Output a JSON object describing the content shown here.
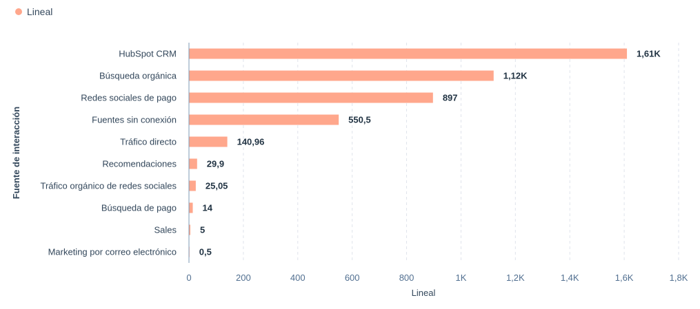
{
  "legend": {
    "label": "Lineal",
    "color": "#ffa78c"
  },
  "chart_data": {
    "type": "bar",
    "orientation": "horizontal",
    "categories": [
      "HubSpot CRM",
      "Búsqueda orgánica",
      "Redes sociales de pago",
      "Fuentes sin conexión",
      "Tráfico directo",
      "Recomendaciones",
      "Tráfico orgánico de redes sociales",
      "Búsqueda de pago",
      "Sales",
      "Marketing por correo electrónico"
    ],
    "series": [
      {
        "name": "Lineal",
        "color": "#ffa78c",
        "values": [
          1610,
          1120,
          897,
          550.5,
          140.96,
          29.9,
          25.05,
          14,
          5,
          0.5
        ],
        "value_labels": [
          "1,61K",
          "1,12K",
          "897",
          "550,5",
          "140,96",
          "29,9",
          "25,05",
          "14",
          "5",
          "0,5"
        ]
      }
    ],
    "xlabel": "Lineal",
    "ylabel": "Fuente de interacción",
    "xlim": [
      0,
      1800
    ],
    "x_ticks": [
      0,
      200,
      400,
      600,
      800,
      1000,
      1200,
      1400,
      1600,
      1800
    ],
    "x_tick_labels": [
      "0",
      "200",
      "400",
      "600",
      "800",
      "1K",
      "1,2K",
      "1,4K",
      "1,6K",
      "1,8K"
    ],
    "grid": true,
    "legend_position": "top-left"
  }
}
